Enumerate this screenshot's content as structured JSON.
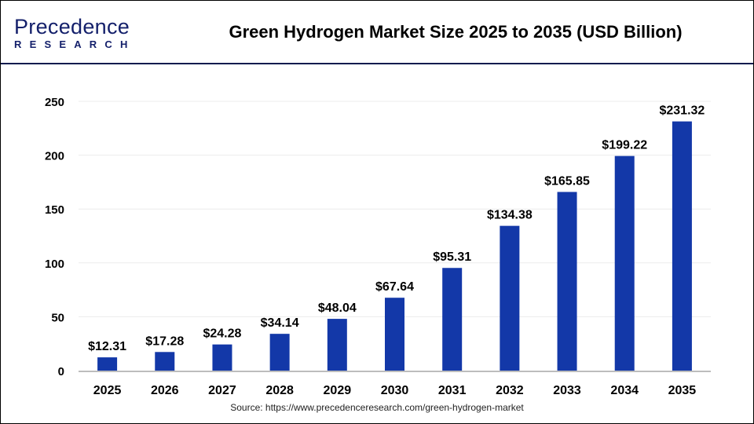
{
  "brand": {
    "logo_main": "Precedence",
    "logo_sub": "RESEARCH"
  },
  "source": "Source: https://www.precedenceresearch.com/green-hydrogen-market",
  "chart_data": {
    "type": "bar",
    "title": "Green Hydrogen Market Size 2025 to 2035 (USD Billion)",
    "xlabel": "",
    "ylabel": "",
    "categories": [
      "2025",
      "2026",
      "2027",
      "2028",
      "2029",
      "2030",
      "2031",
      "2032",
      "2033",
      "2034",
      "2035"
    ],
    "values": [
      12.31,
      17.28,
      24.28,
      34.14,
      48.04,
      67.64,
      95.31,
      134.38,
      165.85,
      199.22,
      231.32
    ],
    "data_labels": [
      "$12.31",
      "$17.28",
      "$24.28",
      "$34.14",
      "$48.04",
      "$67.64",
      "$95.31",
      "$134.38",
      "$165.85",
      "$199.22",
      "$231.32"
    ],
    "yticks": [
      0,
      50,
      100,
      150,
      200,
      250
    ],
    "ylim": [
      0,
      250
    ],
    "grid": true,
    "bar_color": "#1338a8"
  }
}
